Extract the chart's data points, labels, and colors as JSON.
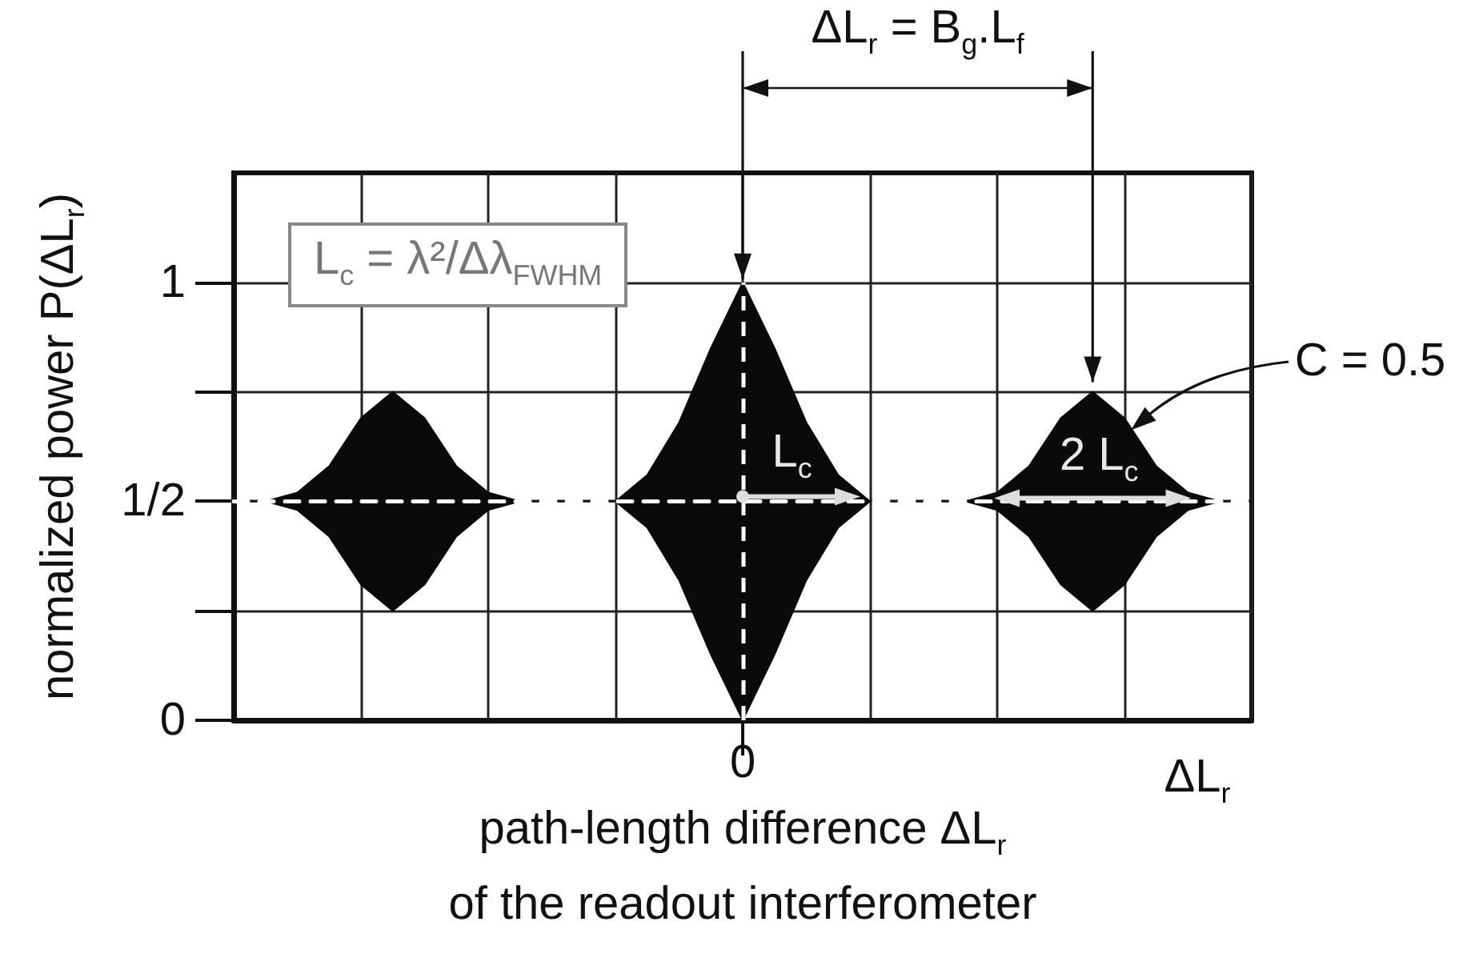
{
  "chart_data": {
    "type": "line",
    "xlabel": "path-length difference ΔL$_{r}$\nof the readout interferometer",
    "ylabel": "normalized power P(ΔL$_{r}$)",
    "categories": [
      null,
      null,
      null,
      null,
      null,
      null,
      null,
      null,
      null,
      null,
      null,
      null,
      null,
      null,
      null,
      null,
      "0",
      null,
      null,
      null,
      null,
      null,
      null,
      null,
      null,
      null,
      null,
      null,
      null,
      null,
      null,
      null,
      null
    ],
    "series": [
      {
        "color": "#ffffff",
        "line_style": "dashed",
        "values": [
          0.5,
          0.5,
          0.5,
          0.5,
          0.5,
          0.5,
          0.5,
          0.5,
          0.5,
          0.5,
          0.5,
          0.5,
          0.5,
          0.5,
          0.5,
          0.5,
          0.5,
          0.5,
          0.5,
          0.5,
          0.5,
          0.5,
          0.5,
          0.5,
          0.5,
          0.5,
          0.5,
          0.5,
          0.5,
          0.5,
          0.5,
          0.5,
          0.5
        ],
        "upper": [
          0.5,
          0.5,
          0.52,
          0.58,
          0.69,
          0.75,
          0.69,
          0.58,
          0.52,
          0.5,
          0.5,
          0.5,
          0.5,
          0.56,
          0.68,
          0.85,
          1.0,
          0.85,
          0.68,
          0.56,
          0.5,
          0.5,
          0.5,
          0.5,
          0.52,
          0.58,
          0.69,
          0.75,
          0.69,
          0.58,
          0.52,
          0.5,
          0.5
        ],
        "lower": [
          0.5,
          0.5,
          0.48,
          0.42,
          0.31,
          0.25,
          0.31,
          0.42,
          0.48,
          0.5,
          0.5,
          0.5,
          0.5,
          0.44,
          0.32,
          0.15,
          0.0,
          0.15,
          0.32,
          0.44,
          0.5,
          0.5,
          0.5,
          0.5,
          0.48,
          0.42,
          0.31,
          0.25,
          0.31,
          0.42,
          0.48,
          0.5,
          0.5
        ]
      }
    ],
    "ylim": [
      0,
      1.25
    ],
    "yticks": [
      0,
      {
        "value": 0.25,
        "label": null
      },
      {
        "value": 0.5,
        "label": "1/2"
      },
      {
        "value": 0.75,
        "label": null
      },
      1
    ],
    "grid": true,
    "ref_lines": [
      {
        "axis": "x",
        "value": "0",
        "color": "#ffffff",
        "line_style": "dashed"
      }
    ],
    "annotations": [
      "ΔL$_{r}$ = B$_{g}$.L$_{f}$",
      "L$_{c}$ = λ²/Δλ$_{FWHM}$",
      "C = 0.5",
      "L$_{c}$",
      "2 L$_{c}$",
      "ΔL$_{r}$"
    ]
  }
}
